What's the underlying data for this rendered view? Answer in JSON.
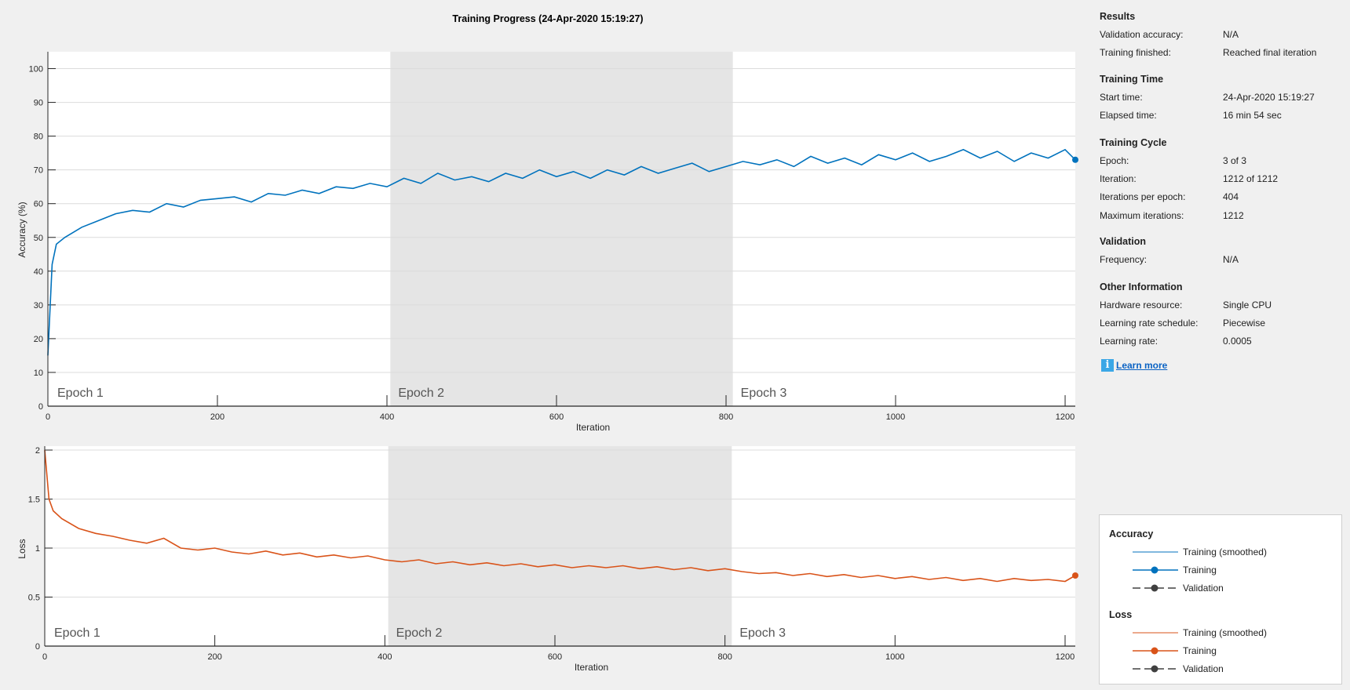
{
  "title": "Training Progress (24-Apr-2020 15:19:27)",
  "colors": {
    "accuracy": "#0072BD",
    "loss": "#D95319",
    "validation": "#404040",
    "epoch_shade": "#E5E5E5"
  },
  "results": {
    "heading": "Results",
    "rows": [
      {
        "label": "Validation accuracy:",
        "value": "N/A"
      },
      {
        "label": "Training finished:",
        "value": "Reached final iteration"
      }
    ]
  },
  "training_time": {
    "heading": "Training Time",
    "rows": [
      {
        "label": "Start time:",
        "value": "24-Apr-2020 15:19:27"
      },
      {
        "label": "Elapsed time:",
        "value": "16 min 54 sec"
      }
    ]
  },
  "training_cycle": {
    "heading": "Training Cycle",
    "rows": [
      {
        "label": "Epoch:",
        "value": "3 of 3"
      },
      {
        "label": "Iteration:",
        "value": "1212 of 1212"
      },
      {
        "label": "Iterations per epoch:",
        "value": "404"
      },
      {
        "label": "Maximum iterations:",
        "value": "1212"
      }
    ]
  },
  "validation": {
    "heading": "Validation",
    "rows": [
      {
        "label": "Frequency:",
        "value": "N/A"
      }
    ]
  },
  "other_info": {
    "heading": "Other Information",
    "rows": [
      {
        "label": "Hardware resource:",
        "value": "Single CPU"
      },
      {
        "label": "Learning rate schedule:",
        "value": "Piecewise"
      },
      {
        "label": "Learning rate:",
        "value": "0.0005"
      }
    ]
  },
  "learn_more": "Learn more",
  "legend": {
    "accuracy_heading": "Accuracy",
    "loss_heading": "Loss",
    "items": [
      "Training (smoothed)",
      "Training",
      "Validation"
    ]
  },
  "chart_data": [
    {
      "type": "line",
      "ylabel": "Accuracy (%)",
      "xlabel": "Iteration",
      "xlim": [
        0,
        1212
      ],
      "ylim": [
        0,
        105
      ],
      "xticks": [
        0,
        200,
        400,
        600,
        800,
        1000,
        1200
      ],
      "yticks": [
        0,
        10,
        20,
        30,
        40,
        50,
        60,
        70,
        80,
        90,
        100
      ],
      "grid": true,
      "epochs": [
        {
          "label": "Epoch 1",
          "start": 0,
          "end": 404
        },
        {
          "label": "Epoch 2",
          "start": 404,
          "end": 808
        },
        {
          "label": "Epoch 3",
          "start": 808,
          "end": 1212
        }
      ],
      "series": [
        {
          "name": "Training",
          "x": [
            0,
            5,
            10,
            20,
            40,
            60,
            80,
            100,
            120,
            140,
            160,
            180,
            200,
            220,
            240,
            260,
            280,
            300,
            320,
            340,
            360,
            380,
            400,
            420,
            440,
            460,
            480,
            500,
            520,
            540,
            560,
            580,
            600,
            620,
            640,
            660,
            680,
            700,
            720,
            740,
            760,
            780,
            800,
            820,
            840,
            860,
            880,
            900,
            920,
            940,
            960,
            980,
            1000,
            1020,
            1040,
            1060,
            1080,
            1100,
            1120,
            1140,
            1160,
            1180,
            1200,
            1212
          ],
          "values": [
            15,
            42,
            48,
            50,
            53,
            55,
            57,
            58,
            57.5,
            60,
            59,
            61,
            61.5,
            62,
            60.5,
            63,
            62.5,
            64,
            63,
            65,
            64.5,
            66,
            65,
            67.5,
            66,
            69,
            67,
            68,
            66.5,
            69,
            67.5,
            70,
            68,
            69.5,
            67.5,
            70,
            68.5,
            71,
            69,
            70.5,
            72,
            69.5,
            71,
            72.5,
            71.5,
            73,
            71,
            74,
            72,
            73.5,
            71.5,
            74.5,
            73,
            75,
            72.5,
            74,
            76,
            73.5,
            75.5,
            72.5,
            75,
            73.5,
            76,
            73
          ]
        }
      ]
    },
    {
      "type": "line",
      "ylabel": "Loss",
      "xlabel": "Iteration",
      "xlim": [
        0,
        1212
      ],
      "ylim": [
        0,
        2.04
      ],
      "xticks": [
        0,
        200,
        400,
        600,
        800,
        1000,
        1200
      ],
      "yticks": [
        0,
        0.5,
        1,
        1.5,
        2
      ],
      "grid": true,
      "epochs": [
        {
          "label": "Epoch 1",
          "start": 0,
          "end": 404
        },
        {
          "label": "Epoch 2",
          "start": 404,
          "end": 808
        },
        {
          "label": "Epoch 3",
          "start": 808,
          "end": 1212
        }
      ],
      "series": [
        {
          "name": "Training",
          "x": [
            0,
            5,
            10,
            20,
            40,
            60,
            80,
            100,
            120,
            140,
            160,
            180,
            200,
            220,
            240,
            260,
            280,
            300,
            320,
            340,
            360,
            380,
            400,
            420,
            440,
            460,
            480,
            500,
            520,
            540,
            560,
            580,
            600,
            620,
            640,
            660,
            680,
            700,
            720,
            740,
            760,
            780,
            800,
            820,
            840,
            860,
            880,
            900,
            920,
            940,
            960,
            980,
            1000,
            1020,
            1040,
            1060,
            1080,
            1100,
            1120,
            1140,
            1160,
            1180,
            1200,
            1212
          ],
          "values": [
            2.0,
            1.5,
            1.38,
            1.3,
            1.2,
            1.15,
            1.12,
            1.08,
            1.05,
            1.1,
            1.0,
            0.98,
            1.0,
            0.96,
            0.94,
            0.97,
            0.93,
            0.95,
            0.91,
            0.93,
            0.9,
            0.92,
            0.88,
            0.86,
            0.88,
            0.84,
            0.86,
            0.83,
            0.85,
            0.82,
            0.84,
            0.81,
            0.83,
            0.8,
            0.82,
            0.8,
            0.82,
            0.79,
            0.81,
            0.78,
            0.8,
            0.77,
            0.79,
            0.76,
            0.74,
            0.75,
            0.72,
            0.74,
            0.71,
            0.73,
            0.7,
            0.72,
            0.69,
            0.71,
            0.68,
            0.7,
            0.67,
            0.69,
            0.66,
            0.69,
            0.67,
            0.68,
            0.66,
            0.72
          ]
        }
      ]
    }
  ]
}
